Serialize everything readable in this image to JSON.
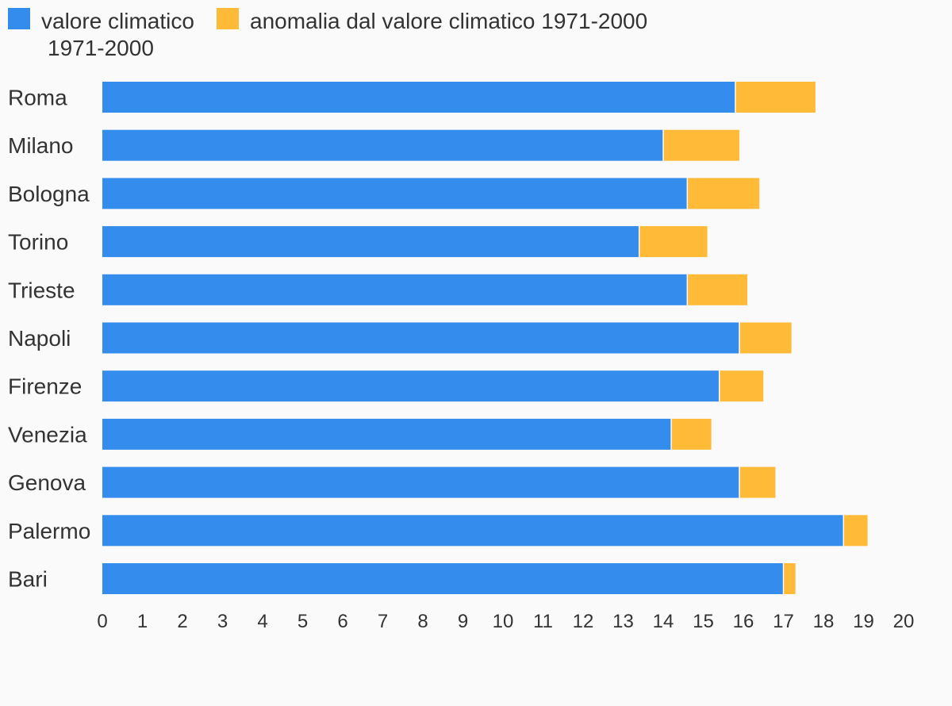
{
  "chart_data": {
    "type": "bar",
    "orientation": "horizontal",
    "stacked": true,
    "categories": [
      "Roma",
      "Milano",
      "Bologna",
      "Torino",
      "Trieste",
      "Napoli",
      "Firenze",
      "Venezia",
      "Genova",
      "Palermo",
      "Bari"
    ],
    "series": [
      {
        "name": "valore climatico 1971-2000",
        "color": "#348ced",
        "values": [
          15.8,
          14.0,
          14.6,
          13.4,
          14.6,
          15.9,
          15.4,
          14.2,
          15.9,
          18.5,
          17.0
        ]
      },
      {
        "name": "anomalia dal valore climatico 1971-2000",
        "color": "#ffbb38",
        "values": [
          2.0,
          1.9,
          1.8,
          1.7,
          1.5,
          1.3,
          1.1,
          1.0,
          0.9,
          0.6,
          0.3
        ]
      }
    ],
    "xlim": [
      0,
      20
    ],
    "xticks": [
      "0",
      "1",
      "2",
      "3",
      "4",
      "5",
      "6",
      "7",
      "8",
      "9",
      "10",
      "11",
      "12",
      "13",
      "14",
      "15",
      "16",
      "17",
      "18",
      "19",
      "20"
    ],
    "grid": false,
    "legend_position": "top-left"
  }
}
